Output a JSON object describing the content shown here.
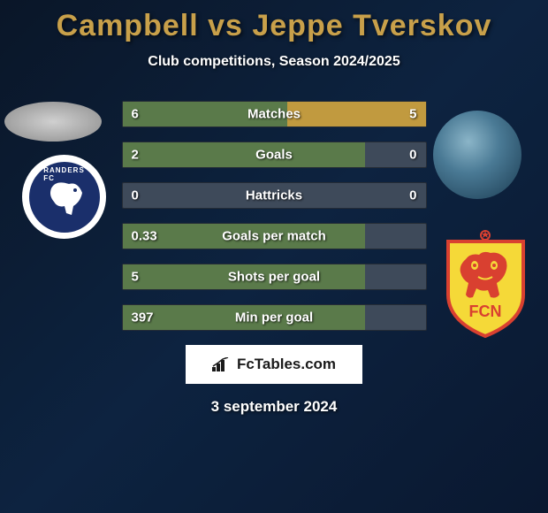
{
  "title": "Campbell vs Jeppe Tverskov",
  "subtitle": "Club competitions, Season 2024/2025",
  "stats": [
    {
      "label": "Matches",
      "left_val": "6",
      "right_val": "5",
      "left_pct": 54.5,
      "right_pct": 45.5
    },
    {
      "label": "Goals",
      "left_val": "2",
      "right_val": "0",
      "left_pct": 80,
      "right_pct": 0
    },
    {
      "label": "Hattricks",
      "left_val": "0",
      "right_val": "0",
      "left_pct": 0,
      "right_pct": 0
    },
    {
      "label": "Goals per match",
      "left_val": "0.33",
      "right_val": "",
      "left_pct": 80,
      "right_pct": 0
    },
    {
      "label": "Shots per goal",
      "left_val": "5",
      "right_val": "",
      "left_pct": 80,
      "right_pct": 0
    },
    {
      "label": "Min per goal",
      "left_val": "397",
      "right_val": "",
      "left_pct": 80,
      "right_pct": 0
    }
  ],
  "brand": "FcTables.com",
  "date": "3 september 2024",
  "colors": {
    "background_start": "#0a1628",
    "background_end": "#0a1830",
    "title_color": "#c8a04a",
    "bar_left": "#5a7a4a",
    "bar_right": "#c19a3f",
    "bar_bg": "#3e4a5a",
    "text": "#ffffff",
    "club_left_bg": "#1a2f6b",
    "club_right_bg": "#f5d938",
    "club_right_accent": "#d94030"
  },
  "club_left_label": "RANDERS FC",
  "club_right_label": "FCN"
}
